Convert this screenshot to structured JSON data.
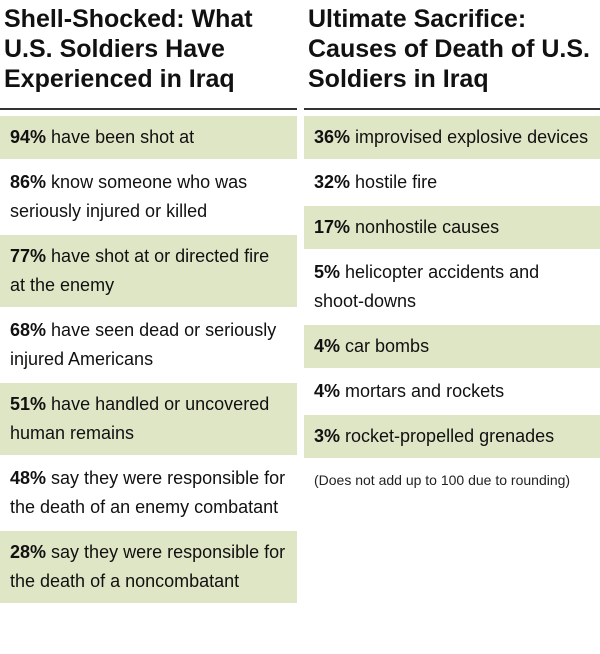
{
  "left": {
    "title": "Shell-Shocked: What U.S. Soldiers Have Experienced in Iraq",
    "items": [
      {
        "pct": "94%",
        "text": "have been shot at",
        "shaded": true
      },
      {
        "pct": "86%",
        "text": "know someone who was seriously injured or killed",
        "shaded": false
      },
      {
        "pct": "77%",
        "text": "have shot at or directed fire at the enemy",
        "shaded": true
      },
      {
        "pct": "68%",
        "text": "have seen dead or seriously injured Americans",
        "shaded": false
      },
      {
        "pct": "51%",
        "text": "have handled or uncovered human remains",
        "shaded": true
      },
      {
        "pct": "48%",
        "text": "say they were responsible for the death of an enemy combatant",
        "shaded": false
      },
      {
        "pct": "28%",
        "text": "say they were responsible for the death of a noncombatant",
        "shaded": true
      }
    ]
  },
  "right": {
    "title": "Ultimate Sacrifice: Causes of Death of U.S. Soldiers in Iraq",
    "items": [
      {
        "pct": "36%",
        "text": "improvised explosive devices",
        "shaded": true
      },
      {
        "pct": "32%",
        "text": "hostile fire",
        "shaded": false
      },
      {
        "pct": "17%",
        "text": "nonhostile causes",
        "shaded": true
      },
      {
        "pct": "5%",
        "text": "helicopter accidents and shoot-downs",
        "shaded": false
      },
      {
        "pct": "4%",
        "text": "car bombs",
        "shaded": true
      },
      {
        "pct": "4%",
        "text": "mortars and rockets",
        "shaded": false
      },
      {
        "pct": "3%",
        "text": "rocket-propelled grenades",
        "shaded": true
      }
    ],
    "note": "(Does not add up to 100 due to rounding)"
  },
  "colors": {
    "shade": "#dfe6c6",
    "rule": "#333333"
  }
}
